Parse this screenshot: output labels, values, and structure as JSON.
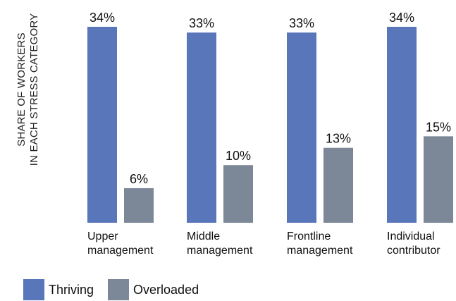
{
  "chart_data": {
    "type": "bar",
    "ylabel_lines": [
      "SHARE OF WORKERS",
      "IN EACH STRESS CATEGORY"
    ],
    "categories": [
      [
        "Upper",
        "management"
      ],
      [
        "Middle",
        "management"
      ],
      [
        "Frontline",
        "management"
      ],
      [
        "Individual",
        "contributor"
      ]
    ],
    "series": [
      {
        "name": "Thriving",
        "color": "#5976bb",
        "values": [
          34,
          33,
          33,
          34
        ],
        "labels": [
          "34%",
          "33%",
          "33%",
          "34%"
        ]
      },
      {
        "name": "Overloaded",
        "color": "#7c8797",
        "values": [
          6,
          10,
          13,
          15
        ],
        "labels": [
          "6%",
          "10%",
          "13%",
          "15%"
        ]
      }
    ],
    "ylim": [
      0,
      34
    ],
    "grid": false,
    "legend_position": "bottom-left"
  }
}
